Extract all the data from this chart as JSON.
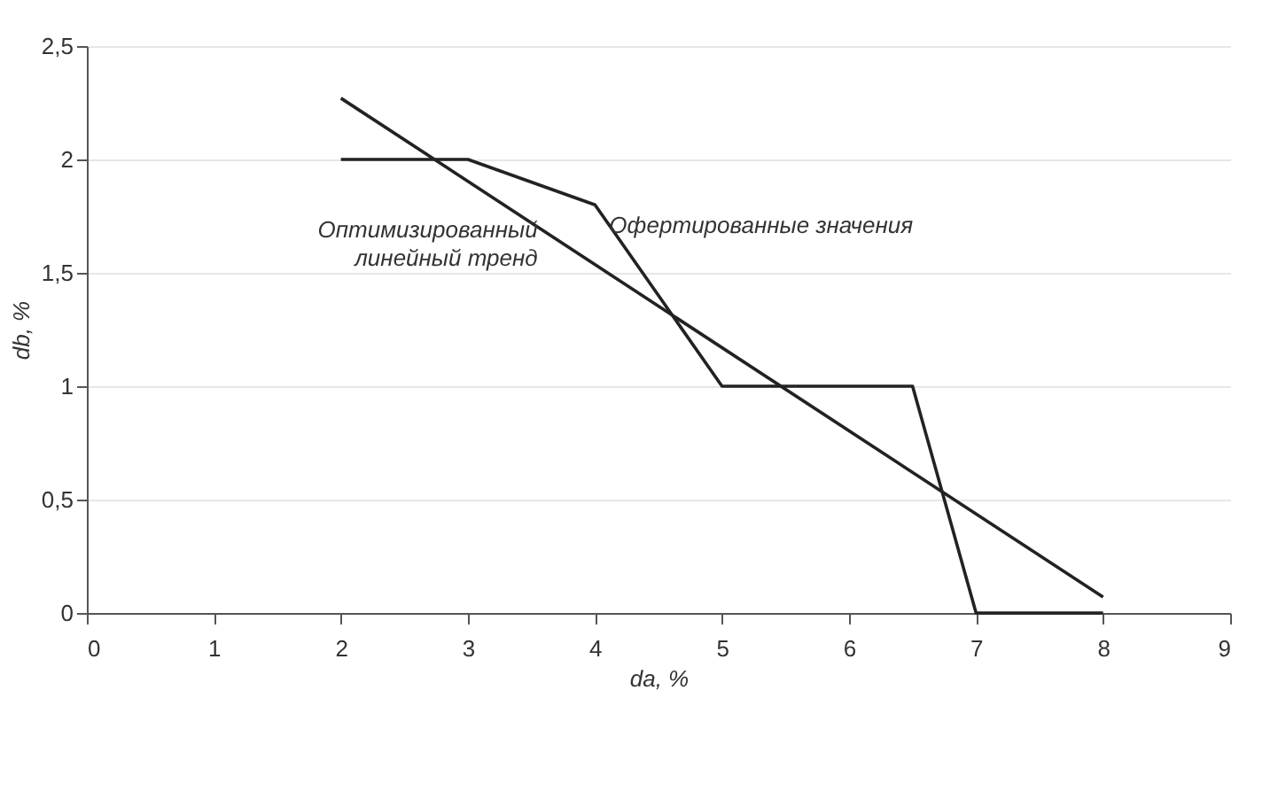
{
  "chart_data": {
    "type": "line",
    "xlabel": "da, %",
    "ylabel": "db, %",
    "xlim": [
      0,
      9
    ],
    "xticks": [
      0,
      1,
      2,
      3,
      4,
      5,
      6,
      7,
      8,
      9
    ],
    "ylim": [
      0,
      2.5
    ],
    "yticks": [
      0,
      {
        "value": 0.5,
        "label": "0,5"
      },
      1,
      {
        "value": 1.5,
        "label": "1,5"
      },
      2,
      {
        "value": 2.5,
        "label": "2,5"
      }
    ],
    "grid": "y",
    "legend": false,
    "marker": "none",
    "line_style": "solid",
    "series": [
      {
        "name": "Офертированные значения",
        "color": "#222222",
        "x": [
          2,
          3,
          4,
          5,
          6.5,
          7,
          8
        ],
        "values": [
          2,
          2,
          1.8,
          1,
          1,
          0,
          0
        ]
      },
      {
        "name": "Оптимизированный\nлинейный тренд",
        "color": "#222222",
        "x": [
          2,
          8
        ],
        "values": [
          2.27,
          0.07
        ]
      }
    ]
  }
}
